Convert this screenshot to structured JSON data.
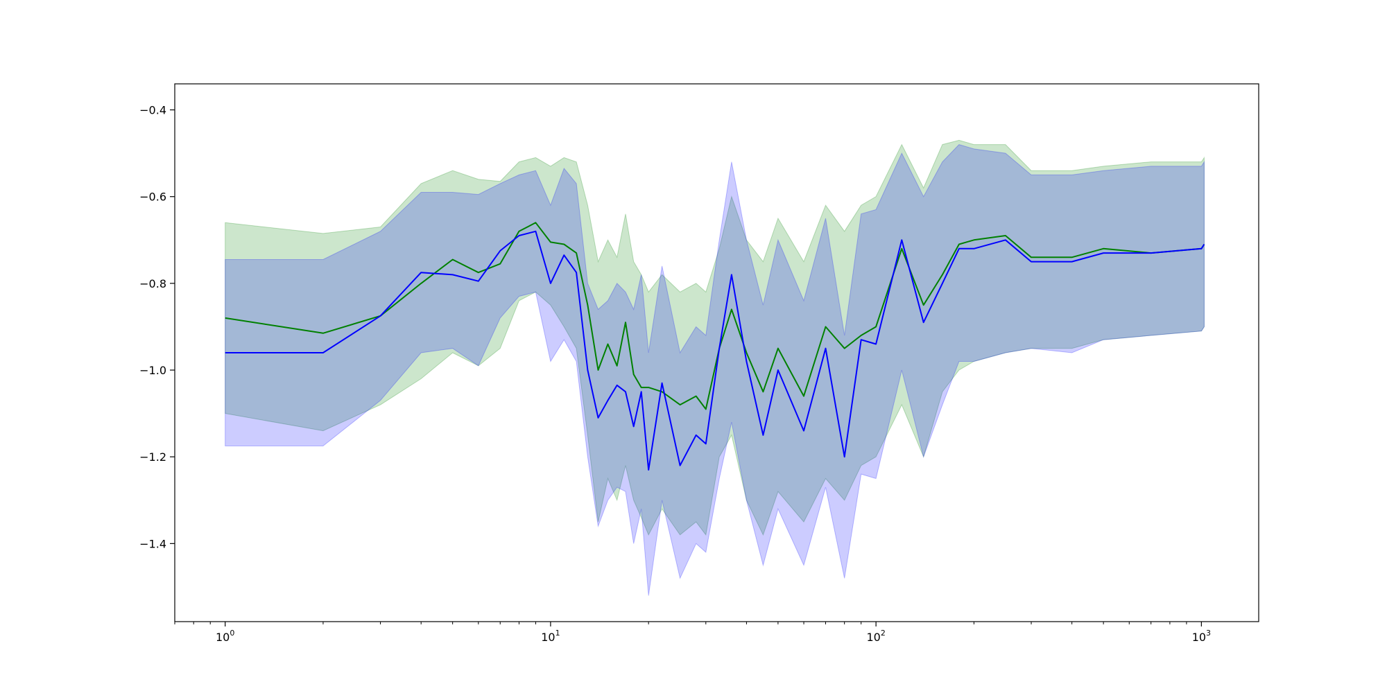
{
  "chart_data": {
    "type": "line",
    "title": "",
    "xlabel": "",
    "ylabel": "",
    "xscale": "log",
    "xlim": [
      0.7,
      1500
    ],
    "ylim": [
      -1.58,
      -0.34
    ],
    "grid": false,
    "legend": "none",
    "x_ticks": [
      {
        "value": 1,
        "base": "10",
        "exp": "0"
      },
      {
        "value": 10,
        "base": "10",
        "exp": "1"
      },
      {
        "value": 100,
        "base": "10",
        "exp": "2"
      },
      {
        "value": 1000,
        "base": "10",
        "exp": "3"
      }
    ],
    "y_ticks": [
      {
        "value": -0.4,
        "label": "−0.4"
      },
      {
        "value": -0.6,
        "label": "−0.6"
      },
      {
        "value": -0.8,
        "label": "−0.8"
      },
      {
        "value": -1.0,
        "label": "−1.0"
      },
      {
        "value": -1.2,
        "label": "−1.2"
      },
      {
        "value": -1.4,
        "label": "−1.4"
      }
    ],
    "series": [
      {
        "color": "#008000",
        "band_color": "#008000",
        "x": [
          1,
          2,
          3,
          4,
          5,
          6,
          7,
          8,
          9,
          10,
          11,
          12,
          13,
          14,
          15,
          16,
          17,
          18,
          19,
          20,
          22,
          25,
          28,
          30,
          33,
          36,
          40,
          45,
          50,
          60,
          70,
          80,
          90,
          100,
          120,
          140,
          160,
          180,
          200,
          250,
          300,
          400,
          500,
          700,
          1000,
          1020
        ],
        "y": [
          -0.88,
          -0.915,
          -0.875,
          -0.8,
          -0.745,
          -0.775,
          -0.755,
          -0.68,
          -0.66,
          -0.705,
          -0.71,
          -0.73,
          -0.85,
          -1.0,
          -0.94,
          -0.99,
          -0.89,
          -1.01,
          -1.04,
          -1.04,
          -1.05,
          -1.08,
          -1.06,
          -1.09,
          -0.95,
          -0.86,
          -0.96,
          -1.05,
          -0.95,
          -1.06,
          -0.9,
          -0.95,
          -0.92,
          -0.9,
          -0.72,
          -0.85,
          -0.78,
          -0.71,
          -0.7,
          -0.69,
          -0.74,
          -0.74,
          -0.72,
          -0.73,
          -0.72,
          -0.71
        ],
        "lower": [
          -1.1,
          -1.14,
          -1.08,
          -1.02,
          -0.96,
          -0.99,
          -0.95,
          -0.84,
          -0.82,
          -0.85,
          -0.9,
          -0.95,
          -1.15,
          -1.35,
          -1.25,
          -1.3,
          -1.22,
          -1.3,
          -1.34,
          -1.38,
          -1.32,
          -1.38,
          -1.35,
          -1.38,
          -1.2,
          -1.15,
          -1.3,
          -1.38,
          -1.28,
          -1.35,
          -1.25,
          -1.3,
          -1.22,
          -1.2,
          -1.08,
          -1.2,
          -1.05,
          -1.0,
          -0.98,
          -0.96,
          -0.95,
          -0.95,
          -0.93,
          -0.92,
          -0.91,
          -0.9
        ],
        "upper": [
          -0.66,
          -0.685,
          -0.67,
          -0.57,
          -0.54,
          -0.56,
          -0.565,
          -0.52,
          -0.51,
          -0.53,
          -0.51,
          -0.52,
          -0.62,
          -0.75,
          -0.7,
          -0.74,
          -0.64,
          -0.75,
          -0.78,
          -0.82,
          -0.78,
          -0.82,
          -0.8,
          -0.82,
          -0.72,
          -0.6,
          -0.7,
          -0.75,
          -0.65,
          -0.75,
          -0.62,
          -0.68,
          -0.62,
          -0.6,
          -0.48,
          -0.58,
          -0.48,
          -0.47,
          -0.48,
          -0.48,
          -0.54,
          -0.54,
          -0.53,
          -0.52,
          -0.52,
          -0.51
        ]
      },
      {
        "color": "#0000ff",
        "band_color": "#0000ff",
        "x": [
          1,
          2,
          3,
          4,
          5,
          6,
          7,
          8,
          9,
          10,
          11,
          12,
          13,
          14,
          15,
          16,
          17,
          18,
          19,
          20,
          22,
          25,
          28,
          30,
          33,
          36,
          40,
          45,
          50,
          60,
          70,
          80,
          90,
          100,
          120,
          140,
          160,
          180,
          200,
          250,
          300,
          400,
          500,
          700,
          1000,
          1020
        ],
        "y": [
          -0.96,
          -0.96,
          -0.875,
          -0.775,
          -0.78,
          -0.795,
          -0.725,
          -0.69,
          -0.68,
          -0.8,
          -0.735,
          -0.775,
          -1.0,
          -1.11,
          -1.07,
          -1.035,
          -1.05,
          -1.13,
          -1.05,
          -1.23,
          -1.03,
          -1.22,
          -1.15,
          -1.17,
          -0.95,
          -0.78,
          -0.98,
          -1.15,
          -1.0,
          -1.14,
          -0.95,
          -1.2,
          -0.93,
          -0.94,
          -0.7,
          -0.89,
          -0.8,
          -0.72,
          -0.72,
          -0.7,
          -0.75,
          -0.75,
          -0.73,
          -0.73,
          -0.72,
          -0.71
        ],
        "lower": [
          -1.175,
          -1.175,
          -1.07,
          -0.96,
          -0.95,
          -0.99,
          -0.88,
          -0.83,
          -0.82,
          -0.98,
          -0.93,
          -0.98,
          -1.2,
          -1.36,
          -1.3,
          -1.27,
          -1.28,
          -1.4,
          -1.32,
          -1.52,
          -1.3,
          -1.48,
          -1.4,
          -1.42,
          -1.25,
          -1.12,
          -1.3,
          -1.45,
          -1.32,
          -1.45,
          -1.27,
          -1.48,
          -1.24,
          -1.25,
          -1.0,
          -1.2,
          -1.08,
          -0.98,
          -0.98,
          -0.96,
          -0.95,
          -0.96,
          -0.93,
          -0.92,
          -0.91,
          -0.9
        ],
        "upper": [
          -0.745,
          -0.745,
          -0.68,
          -0.59,
          -0.59,
          -0.595,
          -0.57,
          -0.55,
          -0.54,
          -0.62,
          -0.535,
          -0.57,
          -0.8,
          -0.86,
          -0.84,
          -0.8,
          -0.82,
          -0.86,
          -0.78,
          -0.96,
          -0.76,
          -0.96,
          -0.9,
          -0.92,
          -0.7,
          -0.52,
          -0.7,
          -0.85,
          -0.7,
          -0.84,
          -0.65,
          -0.92,
          -0.64,
          -0.63,
          -0.5,
          -0.6,
          -0.52,
          -0.48,
          -0.49,
          -0.5,
          -0.55,
          -0.55,
          -0.54,
          -0.53,
          -0.53,
          -0.52
        ]
      }
    ]
  }
}
